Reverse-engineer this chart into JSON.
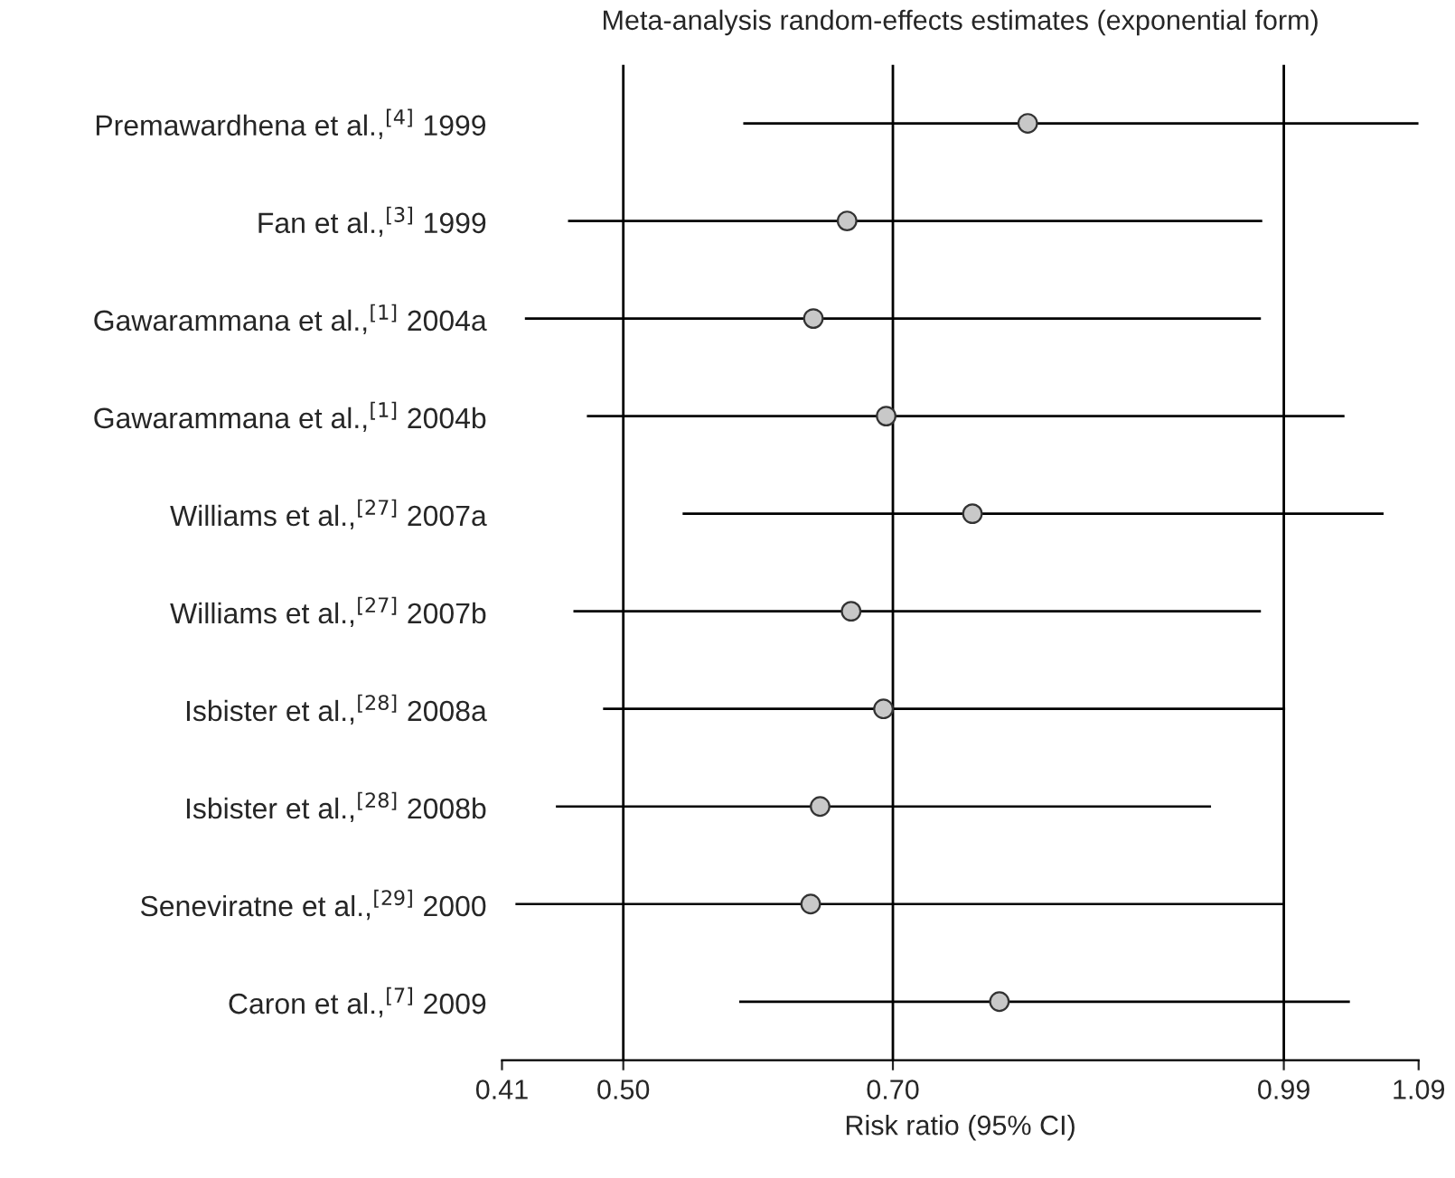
{
  "chart_data": {
    "type": "bar",
    "orientation": "horizontal",
    "title": "Meta-analysis random-effects estimates (exponential form)",
    "xlabel": "Risk ratio (95% CI)",
    "categories": [
      "Premawardhena et al.,$^{[4]}$ 1999",
      "Fan et al.,$^{[3]}$ 1999",
      "Gawarammana et al.,$^{[1]}$ 2004a",
      "Gawarammana et al.,$^{[1]}$ 2004b",
      "Williams et al.,$^{[27]}$ 2007a",
      "Williams et al.,$^{[27]}$ 2007b",
      "Isbister et al.,$^{[28]}$ 2008a",
      "Isbister et al.,$^{[28]}$ 2008b",
      "Seneviratne et al.,$^{[29]}$ 2000",
      "Caron et al.,$^{[7]}$ 2009"
    ],
    "series": [
      {
        "color": "#000000",
        "base": [
          0.589,
          0.459,
          0.427,
          0.473,
          0.544,
          0.463,
          0.485,
          0.45,
          0.42,
          0.586
        ],
        "values": [
          0.501,
          0.515,
          0.546,
          0.562,
          0.52,
          0.51,
          0.506,
          0.486,
          0.57,
          0.453
        ]
      },
      {
        "type": "scatter",
        "color": "#c8c8c8",
        "values": [
          0.8,
          0.666,
          0.641,
          0.695,
          0.759,
          0.669,
          0.693,
          0.646,
          0.639,
          0.779
        ]
      }
    ],
    "marker": "circle",
    "xlim": [
      0.41,
      1.09
    ],
    "xticks": [
      0.41,
      {
        "value": 0.5,
        "label": "0.50"
      },
      {
        "value": 0.7,
        "label": "0.70"
      },
      0.99,
      1.09
    ],
    "ref_lines": [
      {
        "axis": "x",
        "value": 0.5,
        "color": "#000000"
      },
      {
        "axis": "x",
        "value": 0.7,
        "color": "#000000"
      },
      {
        "axis": "x",
        "value": 0.99,
        "color": "#000000"
      }
    ],
    "grid": false
  }
}
